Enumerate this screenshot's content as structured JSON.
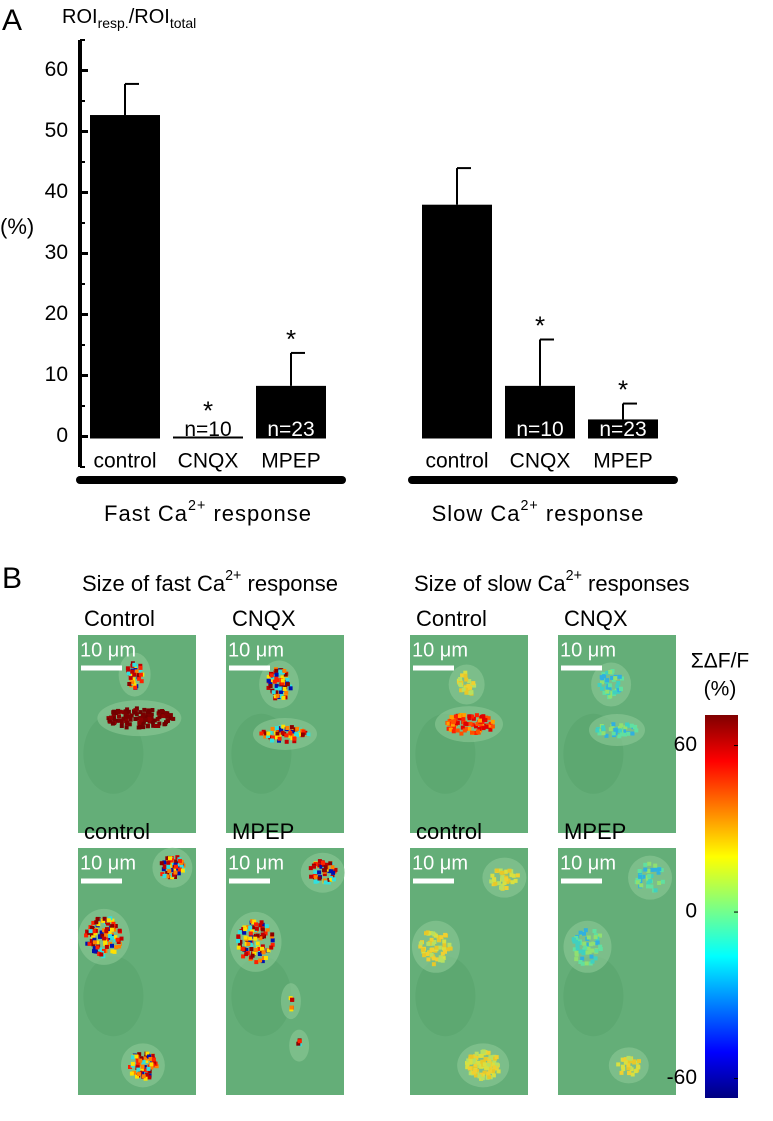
{
  "chart_data": {
    "type": "bar",
    "panel_label": "A",
    "title": [
      "ROI",
      "resp.",
      "/ROI",
      "total"
    ],
    "ylabel": "(%)",
    "color": "#000000",
    "ylim": [
      -5,
      65
    ],
    "yticks": [
      0,
      10,
      20,
      30,
      40,
      50,
      60
    ],
    "minor_yticks": [
      -5,
      5,
      15,
      25,
      35,
      45,
      55,
      65
    ],
    "groups": [
      {
        "name": [
          "Fast Ca",
          "2+",
          " response"
        ],
        "categories": [
          "control",
          "CNQX",
          "MPEP"
        ],
        "values": [
          52.7,
          0,
          8.3
        ],
        "errors": [
          5.1,
          null,
          5.4
        ],
        "n_labels": [
          null,
          "n=10",
          "n=23"
        ],
        "significance": [
          null,
          "*",
          "*"
        ]
      },
      {
        "name": [
          "Slow Ca",
          "2+",
          " response"
        ],
        "categories": [
          "control",
          "CNQX",
          "MPEP"
        ],
        "values": [
          38,
          8.3,
          2.8
        ],
        "errors": [
          6,
          7.6,
          2.6
        ],
        "n_labels": [
          null,
          "n=10",
          "n=23"
        ],
        "significance": [
          null,
          "*",
          "*"
        ]
      }
    ]
  },
  "panel_b": {
    "label": "B",
    "groups": [
      {
        "title": [
          "Size of fast Ca",
          "2+",
          " response"
        ],
        "rows": [
          [
            "Control",
            "CNQX"
          ],
          [
            "control",
            "MPEP"
          ]
        ]
      },
      {
        "title": [
          "Size of slow Ca",
          "2+",
          " responses"
        ],
        "rows": [
          [
            "Control",
            "CNQX"
          ],
          [
            "control",
            "MPEP"
          ]
        ]
      }
    ],
    "scale_bar": "10 μm",
    "colorbar": {
      "label": "ΣΔF/F",
      "unit": "(%)",
      "ticks": [
        60,
        0,
        -60
      ],
      "lim": [
        -67,
        71
      ]
    }
  }
}
